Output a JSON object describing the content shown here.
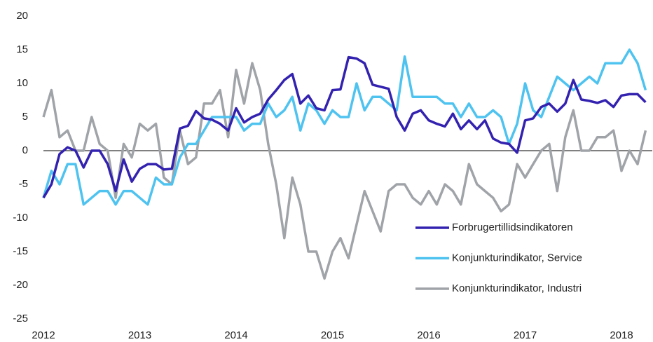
{
  "chart_data": {
    "type": "line",
    "x": [
      2012,
      2012.083,
      2012.167,
      2012.25,
      2012.333,
      2012.417,
      2012.5,
      2012.583,
      2012.667,
      2012.75,
      2012.833,
      2012.917,
      2013,
      2013.083,
      2013.167,
      2013.25,
      2013.333,
      2013.417,
      2013.5,
      2013.583,
      2013.667,
      2013.75,
      2013.833,
      2013.917,
      2014,
      2014.083,
      2014.167,
      2014.25,
      2014.333,
      2014.417,
      2014.5,
      2014.583,
      2014.667,
      2014.75,
      2014.833,
      2014.917,
      2015,
      2015.083,
      2015.167,
      2015.25,
      2015.333,
      2015.417,
      2015.5,
      2015.583,
      2015.667,
      2015.75,
      2015.833,
      2015.917,
      2016,
      2016.083,
      2016.167,
      2016.25,
      2016.333,
      2016.417,
      2016.5,
      2016.583,
      2016.667,
      2016.75,
      2016.833,
      2016.917,
      2017,
      2017.083,
      2017.167,
      2017.25,
      2017.333,
      2017.417,
      2017.5,
      2017.583,
      2017.667,
      2017.75,
      2017.833,
      2017.917,
      2018,
      2018.083,
      2018.167,
      2018.25
    ],
    "series": [
      {
        "name": "Forbrugertillidsindikatoren",
        "color": "#3322b0",
        "values": [
          -7,
          -5,
          -0.5,
          0.5,
          0,
          -2.5,
          0,
          0,
          -2,
          -6,
          -1.3,
          -4.6,
          -2.7,
          -2,
          -2,
          -2.8,
          -2.7,
          3.3,
          3.7,
          5.9,
          4.8,
          4.6,
          4,
          3,
          6.3,
          4.2,
          5,
          5.5,
          7.6,
          9,
          10.5,
          11.4,
          7,
          8.2,
          6.3,
          6,
          9,
          9.1,
          13.9,
          13.7,
          13,
          9.8,
          9.5,
          9.2,
          5,
          3,
          5.5,
          6,
          4.5,
          4,
          3.6,
          5.5,
          3.2,
          4.5,
          3.2,
          4.5,
          1.8,
          1.2,
          1,
          -0.3,
          4.5,
          4.8,
          6.5,
          7,
          5.8,
          7,
          10.5,
          7.6,
          7.4,
          7.1,
          7.5,
          6.5,
          8.2,
          8.4,
          8.4,
          7.2
        ]
      },
      {
        "name": "Konjunkturindikator, Service",
        "color": "#4fc3f0",
        "values": [
          -7,
          -3,
          -5,
          -2,
          -2,
          -8,
          -7,
          -6,
          -6,
          -8,
          -6,
          -6,
          -7,
          -8,
          -4,
          -5,
          -5,
          -1,
          1,
          1,
          3,
          5,
          5,
          5,
          5,
          3,
          4,
          4,
          7,
          5,
          6,
          8,
          3,
          7,
          6,
          4,
          6,
          5,
          5,
          10,
          6,
          8,
          8,
          7,
          6,
          14,
          8,
          8,
          8,
          8,
          7,
          7,
          5,
          7,
          5,
          5,
          6,
          5,
          1,
          4,
          10,
          6,
          5,
          8,
          11,
          10,
          9,
          10,
          11,
          10,
          13,
          13,
          13,
          15,
          13,
          9
        ]
      },
      {
        "name": "Konjunkturindikator, Industri",
        "color": "#a0a4a8",
        "values": [
          5,
          9,
          2,
          3,
          0,
          0,
          5,
          1,
          0,
          -7,
          1,
          -1,
          4,
          3,
          4,
          -4,
          -5,
          3,
          -2,
          -1,
          7,
          7,
          9,
          2,
          12,
          7,
          13,
          9,
          1,
          -5,
          -13,
          -4,
          -8,
          -15,
          -15,
          -19,
          -15,
          -13,
          -16,
          -11,
          -6,
          -9,
          -12,
          -6,
          -5,
          -5,
          -7,
          -8,
          -6,
          -8,
          -5,
          -6,
          -8,
          -2,
          -5,
          -6,
          -7,
          -9,
          -8,
          -2,
          -4,
          -2,
          0,
          1,
          -6,
          2,
          6,
          0,
          0,
          2,
          2,
          3,
          -3,
          0,
          -2,
          3
        ]
      }
    ],
    "xlim": [
      2012,
      2018.32
    ],
    "xticks": [
      2012,
      2013,
      2014,
      2015,
      2016,
      2017,
      2018
    ],
    "ylim": [
      -25,
      20
    ],
    "yticks": [
      -25,
      -20,
      -15,
      -10,
      -5,
      0,
      5,
      10,
      15,
      20
    ],
    "legend": "lower right"
  }
}
